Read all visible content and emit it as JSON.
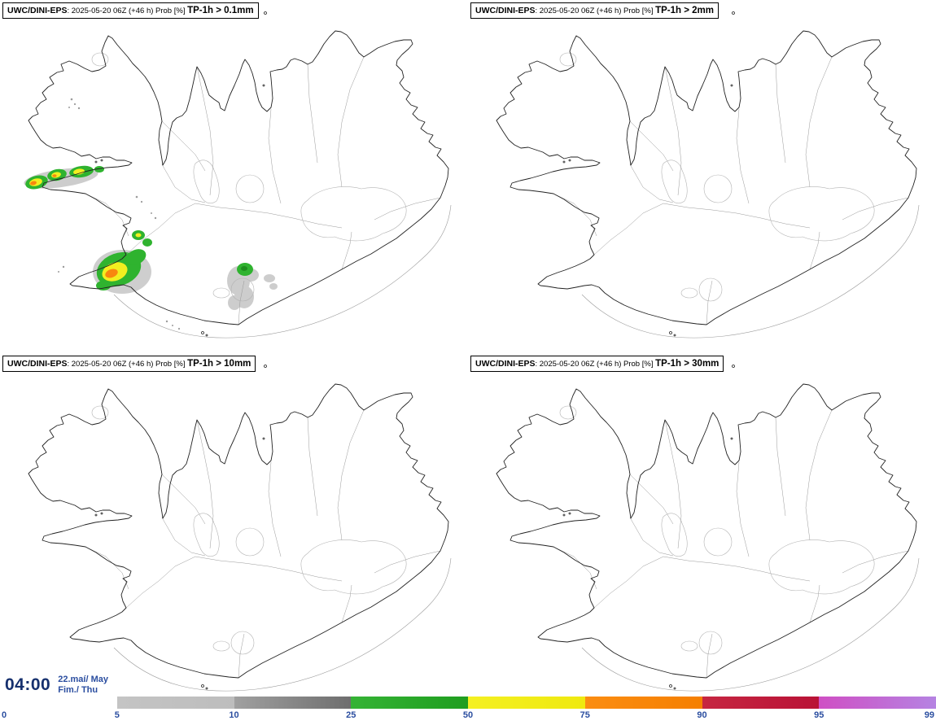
{
  "panels": [
    {
      "model": "UWC/DINI-EPS",
      "meta": ": 2025-05-20 06Z (+46 h) Prob [%] ",
      "threshold": "TP-1h > 0.1mm"
    },
    {
      "model": "UWC/DINI-EPS",
      "meta": ": 2025-05-20 06Z (+46 h) Prob [%] ",
      "threshold": "TP-1h > 2mm"
    },
    {
      "model": "UWC/DINI-EPS",
      "meta": ": 2025-05-20 06Z (+46 h) Prob [%] ",
      "threshold": "TP-1h > 10mm"
    },
    {
      "model": "UWC/DINI-EPS",
      "meta": ": 2025-05-20 06Z (+46 h) Prob [%] ",
      "threshold": "TP-1h > 30mm"
    }
  ],
  "clock": {
    "time": "04:00",
    "date": "22.maí/ May",
    "day": "Fim./ Thu"
  },
  "legend": {
    "ticks": [
      "0",
      "5",
      "10",
      "25",
      "50",
      "75",
      "90",
      "95",
      "99"
    ],
    "segments": [
      {
        "from": "#ffffff",
        "to": "#ffffff"
      },
      {
        "from": "#c4c4c4",
        "to": "#bdbdbd"
      },
      {
        "from": "#a0a0a0",
        "to": "#6e6e6e"
      },
      {
        "from": "#35b335",
        "to": "#1f9e1f"
      },
      {
        "from": "#f4f022",
        "to": "#efe90f"
      },
      {
        "from": "#fb8d12",
        "to": "#f57f00"
      },
      {
        "from": "#c62641",
        "to": "#b91236"
      },
      {
        "from": "#cf4fc4",
        "to": "#b583e2"
      }
    ],
    "tick_color": "#2b4ea0"
  },
  "colors": {
    "time_text": "#16306e",
    "date_text": "#2b4ea0",
    "precip_green": "#2fb32f",
    "precip_yellow": "#f2ee20",
    "precip_orange": "#f8870f",
    "precip_gray": "#a6a6a6"
  }
}
